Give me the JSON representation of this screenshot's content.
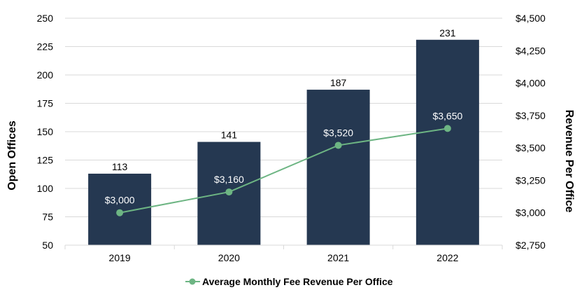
{
  "chart_data": {
    "type": "bar",
    "categories": [
      "2019",
      "2020",
      "2021",
      "2022"
    ],
    "series": [
      {
        "type": "bar",
        "axis": "left",
        "values": [
          113,
          141,
          187,
          231
        ],
        "labels": [
          "113",
          "141",
          "187",
          "231"
        ],
        "color": "#253851"
      },
      {
        "type": "line",
        "axis": "right",
        "name": "Average Monthly Fee Revenue Per Office",
        "values": [
          3000,
          3160,
          3520,
          3650
        ],
        "labels": [
          "$3,000",
          "$3,160",
          "$3,520",
          "$3,650"
        ],
        "color": "#6DB583"
      }
    ],
    "ylabel": "Open Offices",
    "y2label": "Revenue Per Office",
    "ylim": [
      50,
      250
    ],
    "y2lim": [
      2750,
      4500
    ],
    "yticks": [
      "50",
      "75",
      "100",
      "125",
      "150",
      "175",
      "200",
      "225",
      "250"
    ],
    "y2ticks": [
      "$2,750",
      "$3,000",
      "$3,250",
      "$3,500",
      "$3,750",
      "$4,000",
      "$4,250",
      "$4,500"
    ],
    "grid": true,
    "legend_position": "bottom"
  }
}
